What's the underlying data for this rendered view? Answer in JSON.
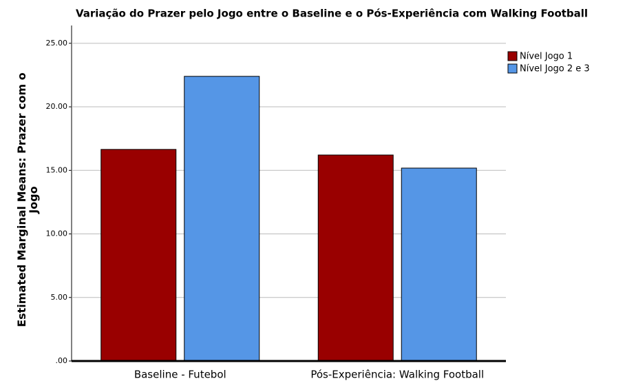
{
  "chart_data": {
    "type": "bar",
    "title": "Variação do Prazer pelo Jogo entre o Baseline e o Pós-Experiência com Walking Football",
    "y_label": "Estimated Marginal Means: Prazer com o Jogo",
    "categories": [
      "Baseline - Futebol",
      "Pós-Experiência: Walking Football"
    ],
    "series": [
      {
        "name": "Nível Jogo 1",
        "color": "#990000",
        "values": [
          16.65,
          16.21
        ]
      },
      {
        "name": "Nível Jogo 2 e 3",
        "color": "#5596e6",
        "values": [
          22.4,
          15.18
        ]
      }
    ],
    "ylim": [
      0,
      26.4
    ],
    "yticks": [
      {
        "value": 0,
        "label": ".00"
      },
      {
        "value": 5,
        "label": "5.00"
      },
      {
        "value": 10,
        "label": "10.00"
      },
      {
        "value": 15,
        "label": "15.00"
      },
      {
        "value": 20,
        "label": "20.00"
      },
      {
        "value": 25,
        "label": "25.00"
      }
    ],
    "grid": true,
    "legend": "top-right"
  }
}
